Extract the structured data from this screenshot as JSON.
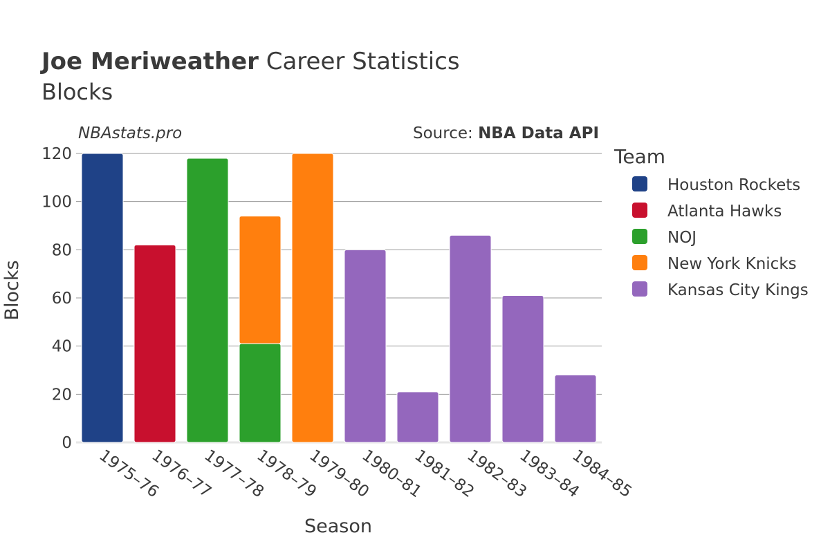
{
  "chart_data": {
    "type": "bar",
    "stacked": true,
    "title_bold": "Joe Meriweather",
    "title_rest": " Career Statistics",
    "subtitle": "Blocks",
    "watermark": "NBAstats.pro",
    "source_prefix": "Source: ",
    "source_name": "NBA Data API",
    "xlabel": "Season",
    "ylabel": "Blocks",
    "ylim": [
      0,
      120
    ],
    "yticks": [
      0,
      20,
      40,
      60,
      80,
      100,
      120
    ],
    "categories": [
      "1975–76",
      "1976–77",
      "1977–78",
      "1978–79",
      "1979–80",
      "1980–81",
      "1981–82",
      "1982–83",
      "1983–84",
      "1984–85"
    ],
    "legend_title": "Team",
    "legend_position": "right",
    "series": [
      {
        "name": "Houston Rockets",
        "color": "#1f4287",
        "values": [
          120,
          0,
          0,
          0,
          0,
          0,
          0,
          0,
          0,
          0
        ]
      },
      {
        "name": "Atlanta Hawks",
        "color": "#c8102e",
        "values": [
          0,
          82,
          0,
          0,
          0,
          0,
          0,
          0,
          0,
          0
        ]
      },
      {
        "name": "NOJ",
        "color": "#2ca02c",
        "values": [
          0,
          0,
          118,
          41,
          0,
          0,
          0,
          0,
          0,
          0
        ]
      },
      {
        "name": "New York Knicks",
        "color": "#ff7f0e",
        "values": [
          0,
          0,
          0,
          53,
          120,
          0,
          0,
          0,
          0,
          0
        ]
      },
      {
        "name": "Kansas City Kings",
        "color": "#9467bd",
        "values": [
          0,
          0,
          0,
          0,
          0,
          80,
          21,
          86,
          61,
          28
        ]
      }
    ]
  }
}
